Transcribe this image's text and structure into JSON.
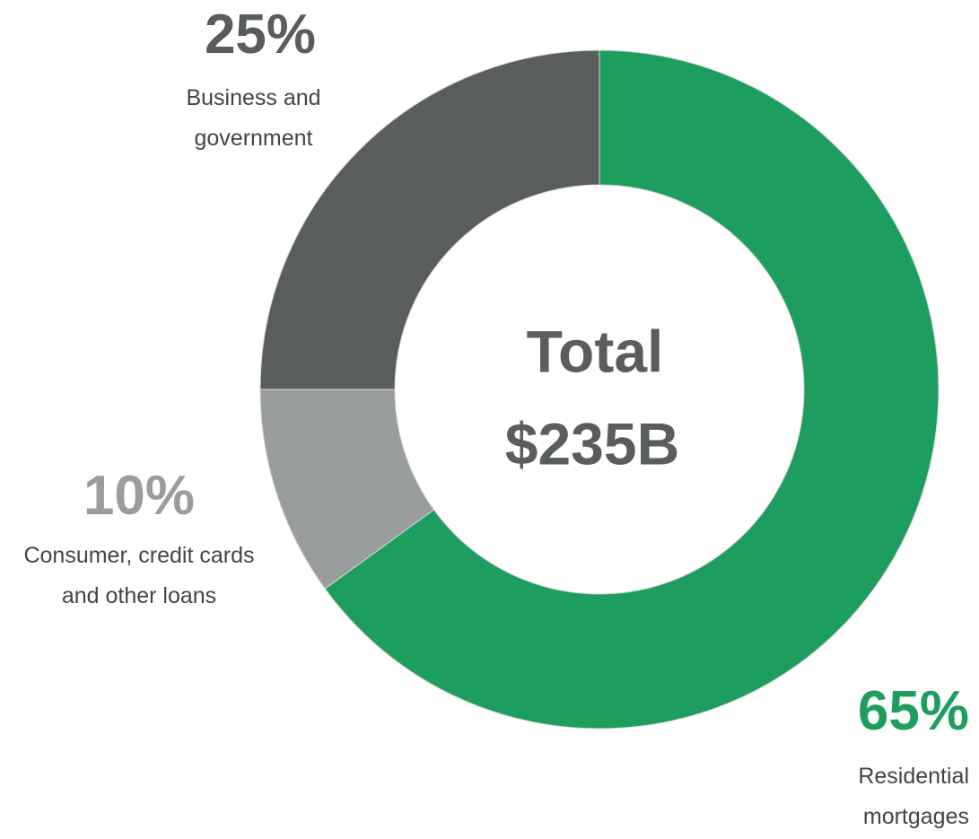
{
  "chart_data": {
    "type": "donut",
    "categories": [
      "Residential mortgages",
      "Consumer, credit cards and other loans",
      "Business and government"
    ],
    "values": [
      65,
      10,
      25
    ],
    "value_labels": [
      "65%",
      "10%",
      "25%"
    ],
    "colors": [
      "#1e9e5e",
      "#9a9d9e",
      "#5a5d5e"
    ],
    "center_label": "Total",
    "center_value": "$235B"
  }
}
